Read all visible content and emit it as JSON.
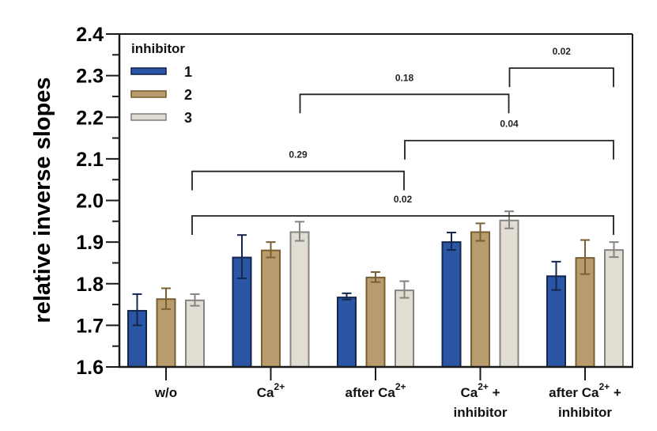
{
  "chart_data": {
    "type": "bar",
    "title": "",
    "xlabel": "",
    "ylabel": "relative inverse slopes",
    "ylim": [
      1.6,
      2.4
    ],
    "yticks": [
      "1.6",
      "1.7",
      "1.8",
      "1.9",
      "2.0",
      "2.1",
      "2.2",
      "2.3",
      "2.4"
    ],
    "minor_ticks": true,
    "grid": false,
    "legend": {
      "title": "inhibitor",
      "placement": "top-left"
    },
    "categories": [
      {
        "lines": [
          {
            "text": "w/o",
            "sup": ""
          }
        ]
      },
      {
        "lines": [
          {
            "text": "Ca",
            "sup": "2+"
          }
        ]
      },
      {
        "lines": [
          {
            "text": "after Ca",
            "sup": "2+"
          }
        ]
      },
      {
        "lines": [
          {
            "text": "Ca",
            "sup": "2+",
            "after": " +"
          },
          {
            "text": "inhibitor",
            "sup": ""
          }
        ]
      },
      {
        "lines": [
          {
            "text": "after Ca",
            "sup": "2+",
            "after": " +"
          },
          {
            "text": "inhibitor",
            "sup": ""
          }
        ]
      }
    ],
    "series": [
      {
        "name": "1",
        "color": "#2b55a5",
        "edge": "#14264d",
        "values": [
          1.735,
          1.863,
          1.767,
          1.9,
          1.818
        ],
        "err_high": [
          1.775,
          1.917,
          1.777,
          1.923,
          1.853
        ],
        "err_low": [
          1.7,
          1.813,
          1.762,
          1.881,
          1.785
        ]
      },
      {
        "name": "2",
        "color": "#b99c6e",
        "edge": "#7a5f31",
        "values": [
          1.763,
          1.88,
          1.815,
          1.924,
          1.862
        ],
        "err_high": [
          1.789,
          1.9,
          1.828,
          1.945,
          1.905
        ],
        "err_low": [
          1.739,
          1.863,
          1.804,
          1.903,
          1.823
        ]
      },
      {
        "name": "3",
        "color": "#e1ddd2",
        "edge": "#85847f",
        "values": [
          1.76,
          1.924,
          1.784,
          1.952,
          1.881
        ],
        "err_high": [
          1.775,
          1.949,
          1.806,
          1.974,
          1.9
        ],
        "err_low": [
          1.747,
          1.903,
          1.766,
          1.933,
          1.864
        ]
      }
    ],
    "annotations": [
      {
        "label": "0.02",
        "from": 3,
        "to": 4,
        "level": 2.318
      },
      {
        "label": "0.18",
        "from": 1,
        "to": 3,
        "level": 2.255
      },
      {
        "label": "0.04",
        "from": 2,
        "to": 4,
        "level": 2.144
      },
      {
        "label": "0.29",
        "from": 0,
        "to": 2,
        "level": 2.07
      },
      {
        "label": "0.02",
        "from": 0,
        "to": 4,
        "level": 1.963
      }
    ]
  }
}
